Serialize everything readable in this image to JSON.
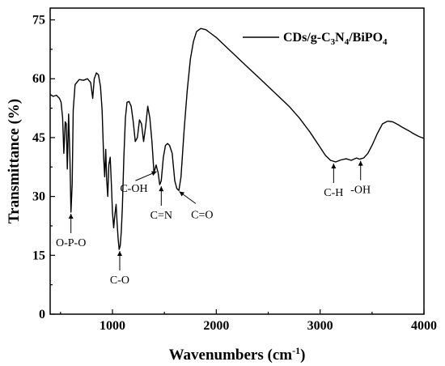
{
  "chart_data": {
    "type": "line",
    "title": "",
    "xlabel": "Wavenumbers (cm",
    "xlabel_sup": "-1",
    "xlabel_end": ")",
    "ylabel": "Transmittance (%)",
    "xlim": [
      400,
      4000
    ],
    "ylim": [
      0,
      78
    ],
    "xticks": [
      1000,
      2000,
      3000,
      4000
    ],
    "xtick_labels": [
      "1000",
      "2000",
      "3000",
      "4000"
    ],
    "yticks": [
      0,
      15,
      30,
      45,
      60,
      75
    ],
    "ytick_labels": [
      "0",
      "15",
      "30",
      "45",
      "60",
      "75"
    ],
    "grid": false,
    "legend": {
      "placement": "top-right",
      "color": "#000000"
    },
    "series": [
      {
        "name": "CDs/g-C3N4/BiPO4",
        "name_parts": {
          "a": "CDs/g-C",
          "s1": "3",
          "b": "N",
          "s2": "4",
          "c": "/BiPO",
          "s3": "4"
        },
        "color": "#000000",
        "points": [
          [
            400,
            56.0
          ],
          [
            430,
            55.5
          ],
          [
            460,
            55.8
          ],
          [
            490,
            55.0
          ],
          [
            505,
            54.0
          ],
          [
            520,
            50.0
          ],
          [
            532,
            41.0
          ],
          [
            545,
            49.0
          ],
          [
            555,
            48.5
          ],
          [
            565,
            37.0
          ],
          [
            578,
            51.0
          ],
          [
            590,
            40.0
          ],
          [
            600,
            26.0
          ],
          [
            612,
            33.0
          ],
          [
            622,
            52.0
          ],
          [
            640,
            58.5
          ],
          [
            680,
            59.8
          ],
          [
            720,
            59.6
          ],
          [
            760,
            60.0
          ],
          [
            790,
            59.0
          ],
          [
            810,
            55.0
          ],
          [
            825,
            60.0
          ],
          [
            845,
            61.5
          ],
          [
            865,
            61.0
          ],
          [
            885,
            58.0
          ],
          [
            900,
            52.0
          ],
          [
            915,
            40.0
          ],
          [
            925,
            35.0
          ],
          [
            935,
            42.0
          ],
          [
            945,
            34.0
          ],
          [
            955,
            30.0
          ],
          [
            965,
            38.0
          ],
          [
            978,
            40.0
          ],
          [
            990,
            33.0
          ],
          [
            1000,
            26.0
          ],
          [
            1012,
            22.0
          ],
          [
            1022,
            25.0
          ],
          [
            1035,
            28.0
          ],
          [
            1045,
            23.0
          ],
          [
            1055,
            19.0
          ],
          [
            1065,
            16.5
          ],
          [
            1075,
            17.5
          ],
          [
            1085,
            21.0
          ],
          [
            1095,
            27.0
          ],
          [
            1110,
            40.0
          ],
          [
            1125,
            50.0
          ],
          [
            1140,
            54.0
          ],
          [
            1160,
            54.2
          ],
          [
            1180,
            53.0
          ],
          [
            1200,
            49.0
          ],
          [
            1220,
            44.0
          ],
          [
            1240,
            45.0
          ],
          [
            1260,
            49.5
          ],
          [
            1280,
            48.5
          ],
          [
            1300,
            44.0
          ],
          [
            1320,
            48.0
          ],
          [
            1340,
            53.0
          ],
          [
            1360,
            50.0
          ],
          [
            1380,
            44.0
          ],
          [
            1400,
            36.0
          ],
          [
            1420,
            38.0
          ],
          [
            1440,
            36.0
          ],
          [
            1455,
            33.0
          ],
          [
            1470,
            34.0
          ],
          [
            1490,
            40.0
          ],
          [
            1510,
            43.0
          ],
          [
            1530,
            43.5
          ],
          [
            1550,
            43.0
          ],
          [
            1575,
            41.0
          ],
          [
            1600,
            34.0
          ],
          [
            1620,
            32.0
          ],
          [
            1640,
            31.5
          ],
          [
            1660,
            35.0
          ],
          [
            1690,
            47.0
          ],
          [
            1720,
            57.0
          ],
          [
            1750,
            65.0
          ],
          [
            1780,
            69.5
          ],
          [
            1810,
            72.0
          ],
          [
            1850,
            72.8
          ],
          [
            1900,
            72.5
          ],
          [
            1950,
            71.5
          ],
          [
            2000,
            70.5
          ],
          [
            2100,
            68.0
          ],
          [
            2200,
            65.5
          ],
          [
            2300,
            63.0
          ],
          [
            2400,
            60.5
          ],
          [
            2500,
            58.0
          ],
          [
            2600,
            55.5
          ],
          [
            2700,
            53.0
          ],
          [
            2800,
            50.0
          ],
          [
            2900,
            46.5
          ],
          [
            3000,
            42.5
          ],
          [
            3050,
            40.5
          ],
          [
            3100,
            39.2
          ],
          [
            3150,
            38.8
          ],
          [
            3200,
            39.3
          ],
          [
            3250,
            39.6
          ],
          [
            3300,
            39.2
          ],
          [
            3350,
            39.8
          ],
          [
            3380,
            39.5
          ],
          [
            3420,
            39.8
          ],
          [
            3460,
            41.0
          ],
          [
            3500,
            43.0
          ],
          [
            3550,
            46.0
          ],
          [
            3600,
            48.5
          ],
          [
            3650,
            49.2
          ],
          [
            3700,
            49.0
          ],
          [
            3750,
            48.3
          ],
          [
            3800,
            47.5
          ],
          [
            3850,
            46.8
          ],
          [
            3900,
            46.0
          ],
          [
            3950,
            45.3
          ],
          [
            4000,
            44.8
          ]
        ]
      }
    ],
    "annotations": [
      {
        "text": "O-P-O",
        "x": 600,
        "y": 26.0,
        "direction": "down"
      },
      {
        "text": "C-O",
        "x": 1070,
        "y": 16.5,
        "direction": "down"
      },
      {
        "text": "C-OH",
        "x": 1440,
        "y": 36.5,
        "direction": "left"
      },
      {
        "text": "C=N",
        "x": 1470,
        "y": 33.0,
        "direction": "down"
      },
      {
        "text": "C=O",
        "x": 1630,
        "y": 31.5,
        "direction": "right"
      },
      {
        "text": "C-H",
        "x": 3130,
        "y": 38.8,
        "direction": "down"
      },
      {
        "text": "-OH",
        "x": 3390,
        "y": 39.5,
        "direction": "down"
      }
    ]
  }
}
